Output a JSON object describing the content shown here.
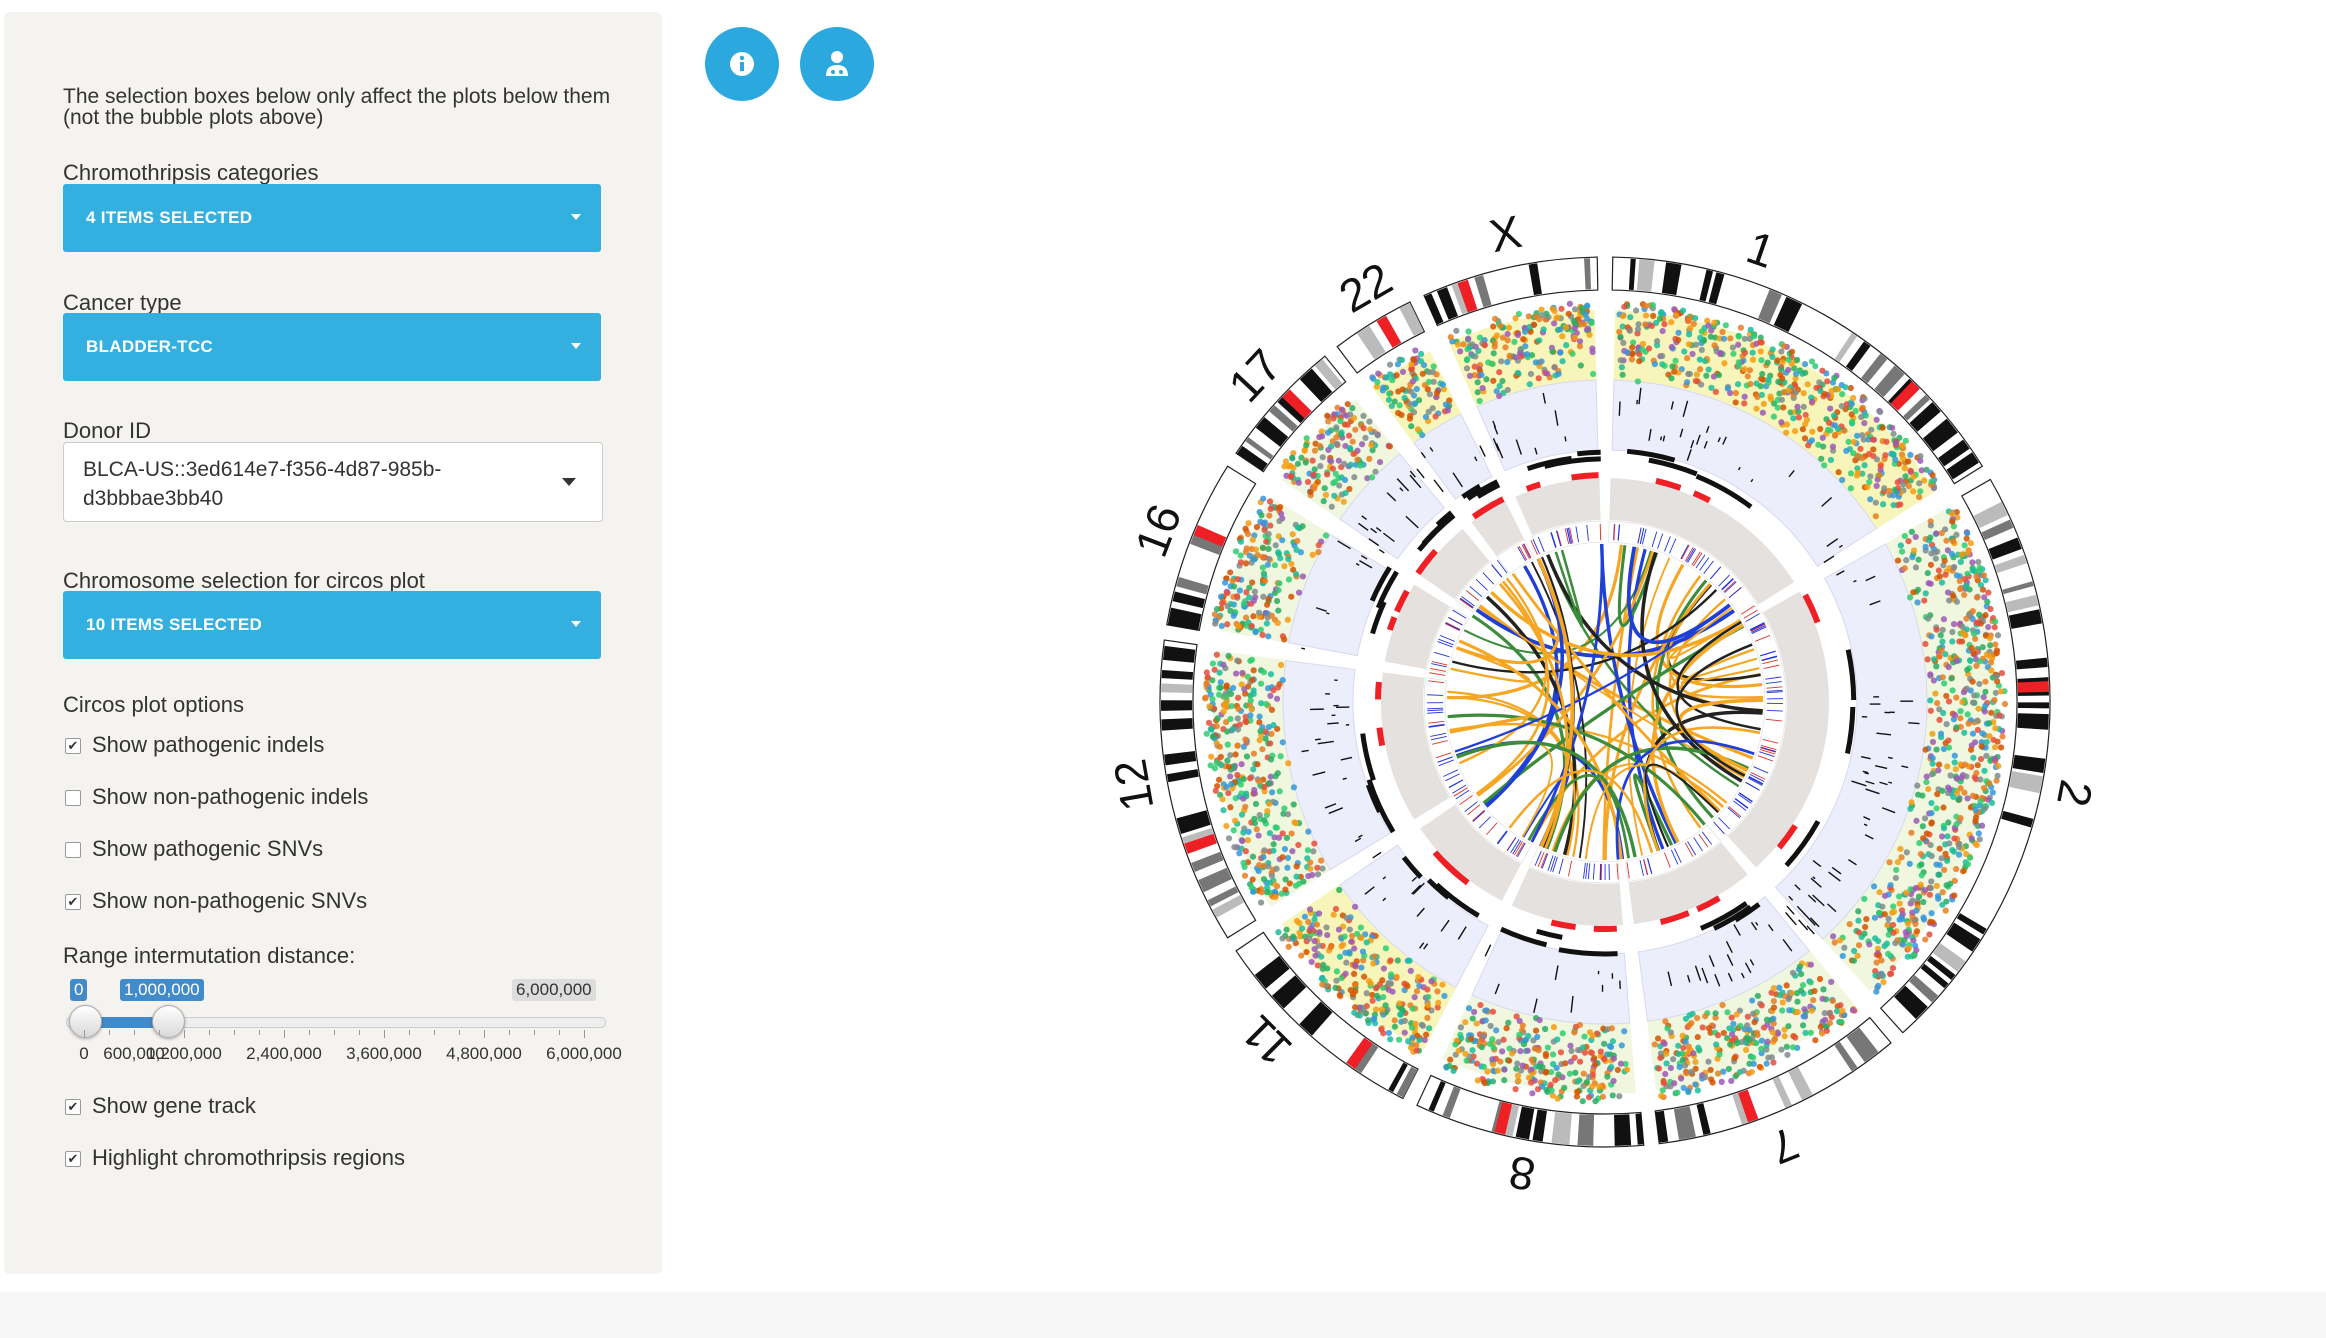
{
  "sidebar": {
    "intro": "The selection boxes below only affect the plots below them (not the bubble plots above)",
    "chromothripsis": {
      "label": "Chromothripsis categories",
      "value": "4 ITEMS SELECTED"
    },
    "cancer_type": {
      "label": "Cancer type",
      "value": "BLADDER-TCC"
    },
    "donor": {
      "label": "Donor ID",
      "value": "BLCA-US::3ed614e7-f356-4d87-985b-d3bbbae3bb40"
    },
    "chrom_select": {
      "label": "Chromosome selection for circos plot",
      "value": "10 ITEMS SELECTED"
    },
    "options_label": "Circos plot options",
    "checkboxes": [
      {
        "label": "Show pathogenic indels",
        "checked": true
      },
      {
        "label": "Show non-pathogenic indels",
        "checked": false
      },
      {
        "label": "Show pathogenic SNVs",
        "checked": false
      },
      {
        "label": "Show non-pathogenic SNVs",
        "checked": true
      }
    ],
    "range": {
      "label": "Range intermutation distance:",
      "min_tag": "0",
      "value_tag": "1,000,000",
      "max_tag": "6,000,000",
      "from": 0,
      "to": 1000000,
      "max": 6000000,
      "grid_labels": [
        "0",
        "600,000",
        "1,200,000",
        "2,400,000",
        "3,600,000",
        "4,800,000",
        "6,000,000"
      ]
    },
    "checkboxes2": [
      {
        "label": "Show gene track",
        "checked": true
      },
      {
        "label": "Highlight chromothripsis regions",
        "checked": true
      }
    ]
  },
  "header_buttons": [
    {
      "name": "info-icon"
    },
    {
      "name": "user-doctor-icon"
    }
  ],
  "circos": {
    "chromosomes": [
      "1",
      "2",
      "7",
      "8",
      "11",
      "12",
      "16",
      "17",
      "22",
      "X"
    ],
    "colors": {
      "accent": "#33b0e0",
      "chromothripsis": "#e8e23a",
      "highlight": "#ee1f25",
      "link_orange": "#f5a623",
      "link_green": "#3c8c3c",
      "link_blue": "#1f3fd6"
    }
  }
}
